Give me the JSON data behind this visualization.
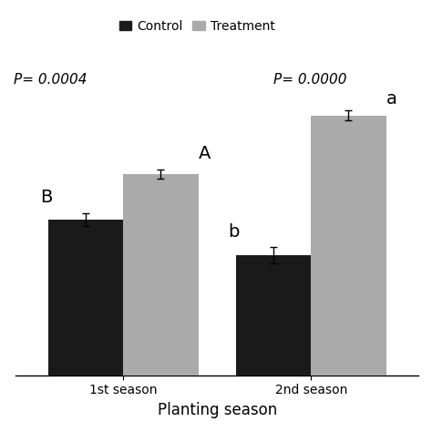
{
  "categories": [
    "1st season",
    "2nd season"
  ],
  "control_values": [
    48,
    37
  ],
  "treatment_values": [
    62,
    80
  ],
  "control_errors": [
    2.0,
    2.5
  ],
  "treatment_errors": [
    1.5,
    1.5
  ],
  "control_color": "#1a1a1a",
  "treatment_color": "#aaaaaa",
  "bar_width": 0.28,
  "group_positions": [
    0.3,
    1.0
  ],
  "xlabel": "Planting season",
  "xlabel_fontsize": 12,
  "legend_labels": [
    "Control",
    "Treatment"
  ],
  "p_values": [
    "P= 0.0004",
    "P= 0.0000"
  ],
  "sig_labels_control": [
    "B",
    "b"
  ],
  "sig_labels_treatment": [
    "A",
    "a"
  ],
  "ylim": [
    0,
    100
  ],
  "p_fontsize": 11,
  "sig_fontsize": 14,
  "tick_fontsize": 10,
  "legend_fontsize": 10,
  "background_color": "#ffffff"
}
